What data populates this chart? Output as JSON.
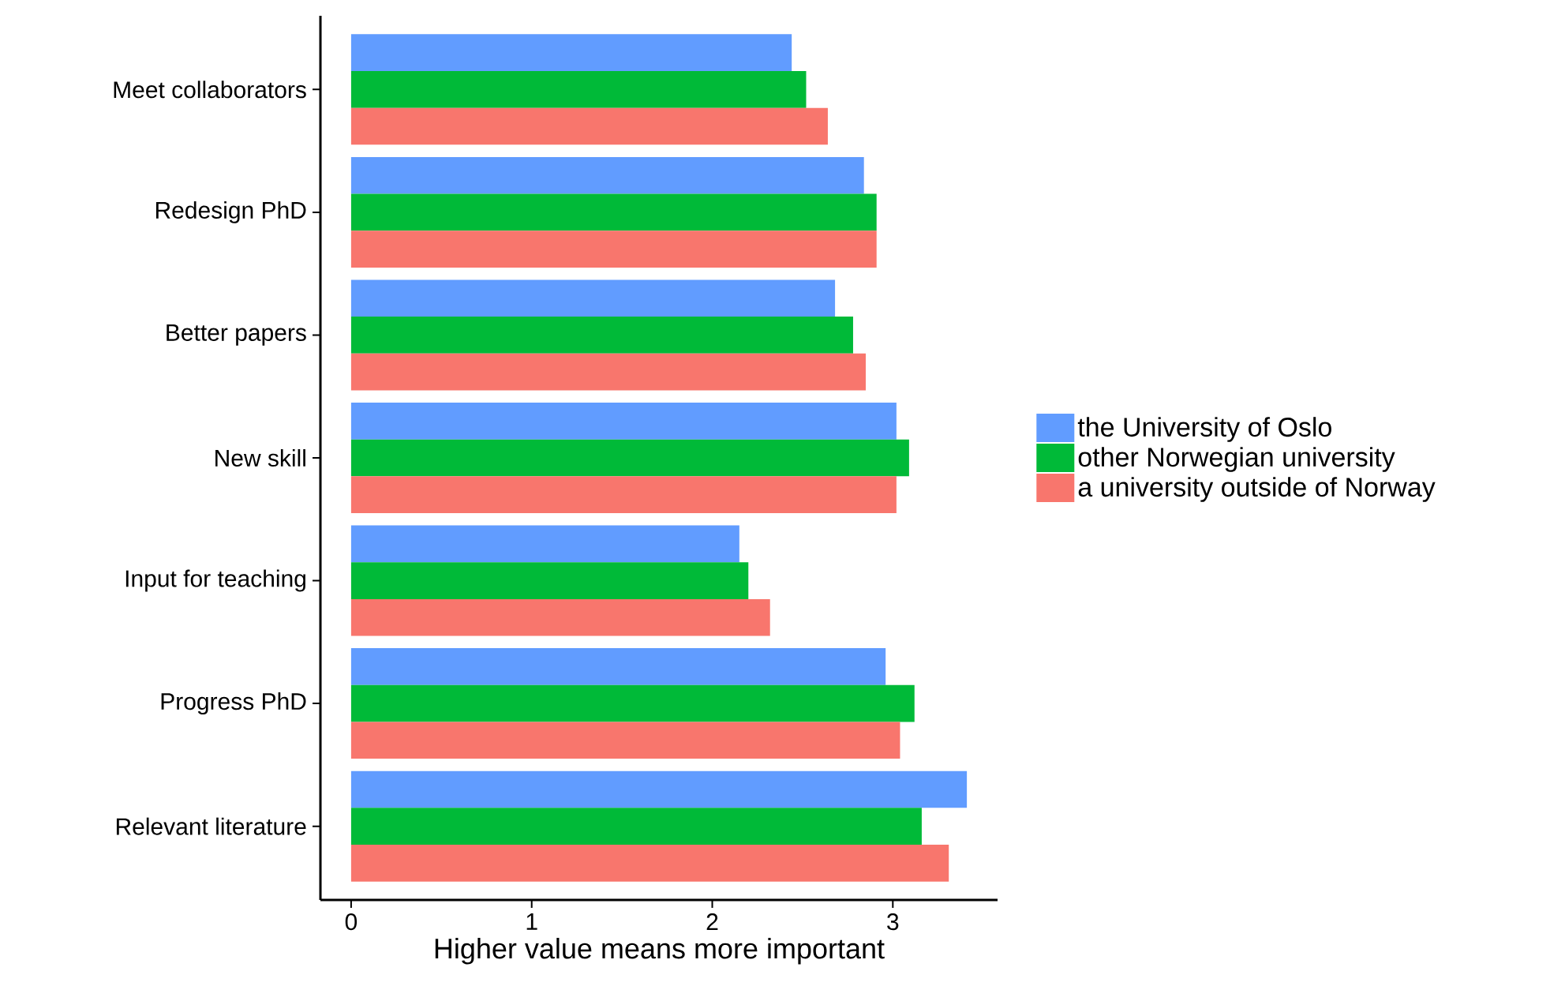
{
  "chart_data": {
    "type": "bar",
    "orientation": "horizontal",
    "xlabel": "Higher value means more important",
    "categories": [
      "Meet collaborators",
      "Redesign PhD",
      "Better papers",
      "New skill",
      "Input for teaching",
      "Progress PhD",
      "Relevant literature"
    ],
    "series": [
      {
        "name": "the University of Oslo",
        "color": "#619cff",
        "values": [
          2.44,
          2.84,
          2.68,
          3.02,
          2.15,
          2.96,
          3.41
        ]
      },
      {
        "name": "other Norwegian university",
        "color": "#00ba38",
        "values": [
          2.52,
          2.91,
          2.78,
          3.09,
          2.2,
          3.12,
          3.16
        ]
      },
      {
        "name": "a university outside of Norway",
        "color": "#f8766d",
        "values": [
          2.64,
          2.91,
          2.85,
          3.02,
          2.32,
          3.04,
          3.31
        ]
      }
    ],
    "xlim": [
      -0.17,
      3.58
    ],
    "xticks": [
      0,
      1,
      2,
      3
    ],
    "grid": false,
    "legend": "right"
  }
}
